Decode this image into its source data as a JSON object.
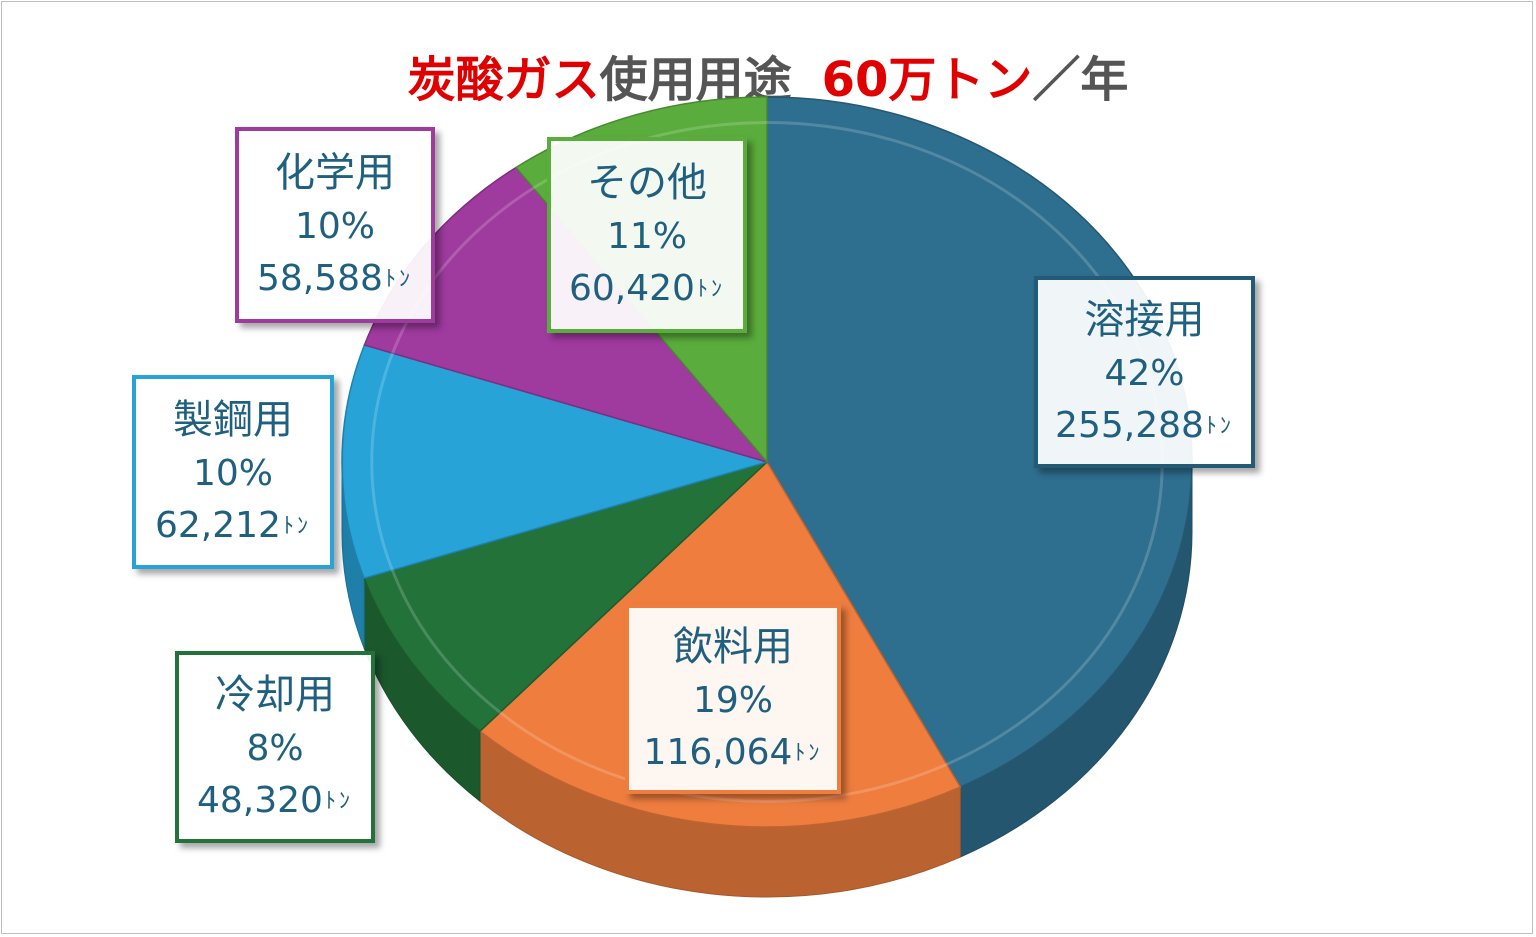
{
  "title": {
    "part1": "炭酸ガス",
    "part2": "使用用途",
    "part3": "60万トン",
    "part4": "／年",
    "red": "#e00000",
    "gray": "#555555"
  },
  "chart_data": {
    "type": "pie",
    "title": "炭酸ガス使用用途　60万トン／年",
    "unit": "トン",
    "slices": [
      {
        "name": "溶接用",
        "percent": "42%",
        "value_label": "255,288",
        "value": 255288,
        "color": "#2e6e8e",
        "border": "#235a75",
        "unit": "ﾄﾝ"
      },
      {
        "name": "飲料用",
        "percent": "19%",
        "value_label": "116,064",
        "value": 116064,
        "color": "#ee7d3e",
        "border": "#ee7d3e",
        "unit": "ﾄﾝ"
      },
      {
        "name": "冷却用",
        "percent": "8%",
        "value_label": "48,320",
        "value": 48320,
        "color": "#23723a",
        "border": "#23723a",
        "unit": "ﾄﾝ"
      },
      {
        "name": "製鋼用",
        "percent": "10%",
        "value_label": "62,212",
        "value": 62212,
        "color": "#27a3d8",
        "border": "#27a3d8",
        "unit": "ﾄﾝ"
      },
      {
        "name": "化学用",
        "percent": "10%",
        "value_label": "58,588",
        "value": 58588,
        "color": "#9f3a9f",
        "border": "#9f3a9f",
        "unit": "ﾄﾝ"
      },
      {
        "name": "その他",
        "percent": "11%",
        "value_label": "60,420",
        "value": 60420,
        "color": "#5aac3c",
        "border": "#5aac3c",
        "unit": "ﾄﾝ"
      }
    ]
  }
}
